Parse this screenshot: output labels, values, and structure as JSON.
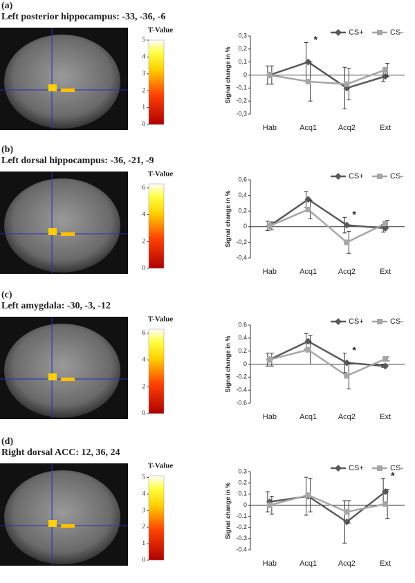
{
  "chart_data": [
    {
      "type": "line",
      "panel_label": "(a)",
      "title": "Left posterior hippocampus: -33, -36, -6",
      "colorbar": {
        "label": "T-Value",
        "lim": [
          0,
          5
        ],
        "ticks": [
          0,
          1,
          2,
          3,
          4,
          5
        ]
      },
      "y_label": "Signal change in %",
      "categories": [
        "Hab",
        "Acq1",
        "Acq2",
        "Ext"
      ],
      "ylim": [
        -0.3,
        0.3
      ],
      "yticks": [
        {
          "value": 0.3,
          "label": "0,3"
        },
        {
          "value": 0.2,
          "label": "0,2"
        },
        {
          "value": 0.1,
          "label": "0,1"
        },
        0,
        {
          "value": -0.1,
          "label": "-0,1"
        },
        {
          "value": -0.2,
          "label": "-0,2"
        },
        {
          "value": -0.3,
          "label": "-0,3"
        }
      ],
      "series": [
        {
          "name": "CS+",
          "color": "#595959",
          "marker": "diamond",
          "values": [
            0,
            0.1,
            -0.1,
            -0.01
          ],
          "errors": [
            0.07,
            0.15,
            0.16,
            0.04
          ]
        },
        {
          "name": "CS-",
          "color": "#a6a6a6",
          "marker": "square",
          "values": [
            0,
            -0.05,
            -0.07,
            0.04
          ],
          "errors": [
            0.07,
            0.15,
            0.12,
            0.05
          ]
        }
      ],
      "annotation": {
        "text": "*",
        "category": "Acq1"
      }
    },
    {
      "type": "line",
      "panel_label": "(b)",
      "title": "Left dorsal hippocampus: -36, -21, -9",
      "colorbar": {
        "label": "T-Value",
        "lim": [
          0,
          6.3
        ],
        "ticks": [
          0,
          2,
          4,
          6
        ]
      },
      "y_label": "Signal change in %",
      "categories": [
        "Hab",
        "Acq1",
        "Acq2",
        "Ext"
      ],
      "ylim": [
        -0.4,
        0.6
      ],
      "yticks": [
        {
          "value": 0.6,
          "label": "0,6"
        },
        {
          "value": 0.4,
          "label": "0,4"
        },
        {
          "value": 0.2,
          "label": "0,2"
        },
        0,
        {
          "value": -0.2,
          "label": "-0,2"
        },
        {
          "value": -0.4,
          "label": "-0,4"
        }
      ],
      "series": [
        {
          "name": "CS+",
          "color": "#595959",
          "marker": "diamond",
          "values": [
            0.01,
            0.35,
            0.02,
            -0.02
          ],
          "errors": [
            0.06,
            0.1,
            0.1,
            0.05
          ]
        },
        {
          "name": "CS-",
          "color": "#a6a6a6",
          "marker": "square",
          "values": [
            0.01,
            0.22,
            -0.2,
            0.04
          ],
          "errors": [
            0.05,
            0.12,
            0.14,
            0.04
          ]
        }
      ],
      "annotation": {
        "text": "*",
        "category": "Acq2"
      }
    },
    {
      "type": "line",
      "panel_label": "(c)",
      "title": "Left amygdala: -30, -3, -12",
      "colorbar": {
        "label": "T-Value",
        "lim": [
          0,
          6.3
        ],
        "ticks": [
          0,
          2,
          4,
          6
        ]
      },
      "y_label": "Signal change in %",
      "categories": [
        "Hab",
        "Acq1",
        "Acq2",
        "Ext"
      ],
      "ylim": [
        -0.6,
        0.6
      ],
      "yticks": [
        0.6,
        0.4,
        0.2,
        0,
        -0.2,
        -0.4,
        -0.6
      ],
      "series": [
        {
          "name": "CS+",
          "color": "#595959",
          "marker": "diamond",
          "values": [
            0.07,
            0.35,
            0.02,
            -0.03
          ],
          "errors": [
            0.1,
            0.12,
            0.15,
            0.02
          ]
        },
        {
          "name": "CS-",
          "color": "#a6a6a6",
          "marker": "square",
          "values": [
            0.07,
            0.22,
            -0.18,
            0.08
          ],
          "errors": [
            0.1,
            0.22,
            0.2,
            0.03
          ]
        }
      ],
      "annotation": {
        "text": "*",
        "category": "Acq2"
      }
    },
    {
      "type": "line",
      "panel_label": "(d)",
      "title": "Right dorsal ACC: 12, 36, 24",
      "colorbar": {
        "label": "T-Value",
        "lim": [
          0,
          5.1
        ],
        "ticks": [
          0,
          1,
          2,
          3,
          4,
          5
        ]
      },
      "y_label": "Signal change in %",
      "categories": [
        "Hab",
        "Acq1",
        "Acq2",
        "Ext"
      ],
      "ylim": [
        -0.4,
        0.3
      ],
      "yticks": [
        0.3,
        0.2,
        0.1,
        0,
        -0.1,
        -0.2,
        -0.3,
        -0.4
      ],
      "series": [
        {
          "name": "CS+",
          "color": "#595959",
          "marker": "diamond",
          "values": [
            0.03,
            0.08,
            -0.15,
            0.12
          ],
          "errors": [
            0.09,
            0.17,
            0.19,
            0.12
          ]
        },
        {
          "name": "CS-",
          "color": "#a6a6a6",
          "marker": "square",
          "values": [
            0,
            0.09,
            -0.06,
            0.01
          ],
          "errors": [
            0.08,
            0.15,
            0.1,
            0.13
          ]
        }
      ],
      "annotation": {
        "text": "*",
        "category": "Ext"
      }
    }
  ]
}
